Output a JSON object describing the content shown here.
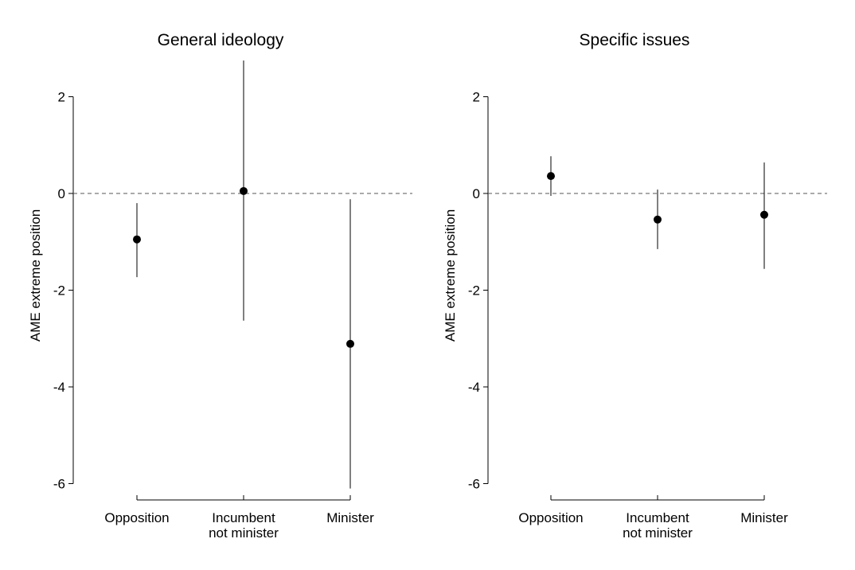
{
  "chart_data": [
    {
      "type": "scatter",
      "title": "General ideology",
      "ylabel": "AME extreme position",
      "xlabel": "",
      "categories": [
        [
          "Opposition"
        ],
        [
          "Incumbent",
          "not minister"
        ],
        [
          "Minister"
        ]
      ],
      "estimates": [
        -0.95,
        0.05,
        -3.11
      ],
      "ci_low": [
        -1.73,
        -2.63,
        -6.1
      ],
      "ci_high": [
        -0.2,
        2.75,
        -0.12
      ],
      "yticks": [
        2,
        0,
        -2,
        -4,
        -6
      ],
      "reference_line": 0,
      "grid": false
    },
    {
      "type": "scatter",
      "title": "Specific issues",
      "ylabel": "AME extreme position",
      "xlabel": "",
      "categories": [
        [
          "Opposition"
        ],
        [
          "Incumbent",
          "not minister"
        ],
        [
          "Minister"
        ]
      ],
      "estimates": [
        0.36,
        -0.54,
        -0.44
      ],
      "ci_low": [
        -0.05,
        -1.15,
        -1.56
      ],
      "ci_high": [
        0.77,
        0.08,
        0.64
      ],
      "yticks": [
        2,
        0,
        -2,
        -4,
        -6
      ],
      "reference_line": 0,
      "grid": false
    }
  ]
}
